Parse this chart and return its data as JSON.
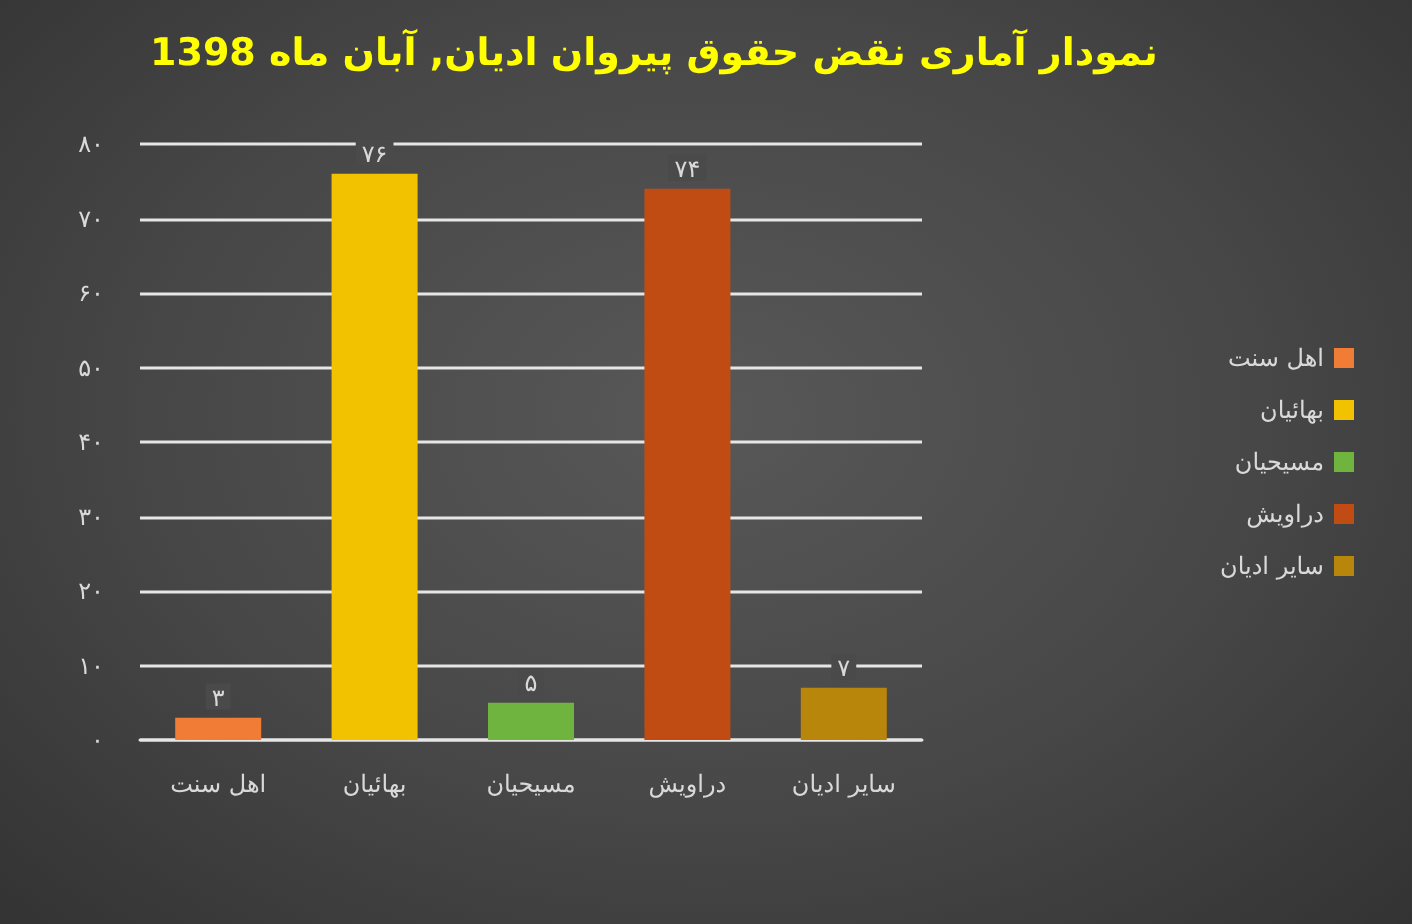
{
  "chart_data": {
    "type": "bar",
    "title": "نمودار آماری نقض حقوق پیروان ادیان, آبان ماه 1398",
    "categories": [
      "اهل سنت",
      "بهائیان",
      "مسیحیان",
      "دراویش",
      "سایر ادیان"
    ],
    "series": [
      {
        "name": "اهل سنت",
        "color": "#f07c35",
        "values": [
          3,
          null,
          null,
          null,
          null
        ],
        "value_labels": [
          "۳",
          null,
          null,
          null,
          null
        ]
      },
      {
        "name": "بهائیان",
        "color": "#f2c200",
        "values": [
          null,
          76,
          null,
          null,
          null
        ],
        "value_labels": [
          null,
          "۷۶",
          null,
          null,
          null
        ]
      },
      {
        "name": "مسیحیان",
        "color": "#6fb43f",
        "values": [
          null,
          null,
          5,
          null,
          null
        ],
        "value_labels": [
          null,
          null,
          "۵",
          null,
          null
        ]
      },
      {
        "name": "دراویش",
        "color": "#c04c14",
        "values": [
          null,
          null,
          null,
          74,
          null
        ],
        "value_labels": [
          null,
          null,
          null,
          "۷۴",
          null
        ]
      },
      {
        "name": "سایر ادیان",
        "color": "#b8860b",
        "values": [
          null,
          null,
          null,
          null,
          7
        ],
        "value_labels": [
          null,
          null,
          null,
          null,
          "۷"
        ]
      }
    ],
    "stacked": true,
    "ylim": [
      0,
      80
    ],
    "yticks": [
      {
        "value": 0,
        "label": "۰"
      },
      {
        "value": 10,
        "label": "۱۰"
      },
      {
        "value": 20,
        "label": "۲۰"
      },
      {
        "value": 30,
        "label": "۳۰"
      },
      {
        "value": 40,
        "label": "۴۰"
      },
      {
        "value": 50,
        "label": "۵۰"
      },
      {
        "value": 60,
        "label": "۶۰"
      },
      {
        "value": 70,
        "label": "۷۰"
      },
      {
        "value": 80,
        "label": "۸۰"
      }
    ],
    "grid": "y",
    "legend": "right"
  }
}
